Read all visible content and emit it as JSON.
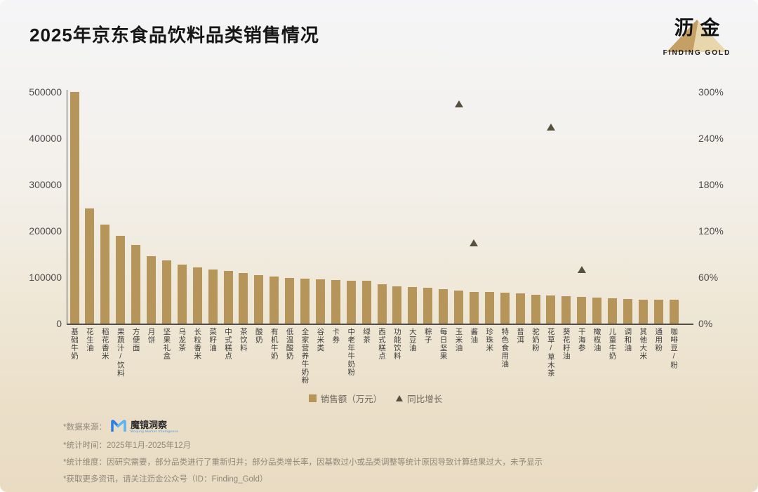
{
  "header": {
    "title": "2025年京东食品饮料品类销售情况",
    "brand": {
      "name": "沥金",
      "subtitle": "FINDING GOLD"
    }
  },
  "chart_data": {
    "type": "bar",
    "title": "2025年京东食品饮料品类销售情况",
    "categories": [
      "基础牛奶",
      "花生油",
      "稻花香米",
      "果蔬汁/饮料",
      "方便面",
      "月饼",
      "坚果礼盒",
      "乌龙茶",
      "长粒香米",
      "菜籽油",
      "中式糕点",
      "茶饮料",
      "酸奶",
      "有机牛奶",
      "低温酸奶",
      "全家营养牛奶粉",
      "谷米类",
      "卡券",
      "中老年牛奶粉",
      "绿茶",
      "西式糕点",
      "功能饮料",
      "大豆油",
      "粽子",
      "每日坚果",
      "玉米油",
      "酱油",
      "珍珠米",
      "特色食用油",
      "普洱",
      "驼奶粉",
      "花草/草木茶",
      "葵花籽油",
      "干海参",
      "橄榄油",
      "儿童牛奶",
      "调和油",
      "其他大米",
      "通用粉",
      "咖啡豆/粉"
    ],
    "series": [
      {
        "name": "销售额（万元）",
        "type": "bar",
        "color": "#b6955a",
        "values": [
          500000,
          248000,
          214000,
          190000,
          170000,
          145000,
          136000,
          128000,
          121000,
          116000,
          113000,
          109000,
          105000,
          101000,
          98000,
          97000,
          95000,
          94000,
          93000,
          92000,
          85000,
          81000,
          79000,
          77000,
          75000,
          72000,
          69000,
          68000,
          66000,
          65000,
          62000,
          60000,
          59000,
          57000,
          56000,
          55000,
          53000,
          52000,
          52000,
          51000
        ]
      },
      {
        "name": "同比增长",
        "type": "scatter-triangle",
        "color": "#56503f",
        "points": [
          {
            "category": "玉米油",
            "growth_pct": 285
          },
          {
            "category": "酱油",
            "growth_pct": 105
          },
          {
            "category": "花草/草木茶",
            "growth_pct": 255
          },
          {
            "category": "干海参",
            "growth_pct": 70
          }
        ]
      }
    ],
    "left_axis": {
      "label": "",
      "ticks": [
        "0",
        "100000",
        "200000",
        "300000",
        "400000",
        "500000"
      ],
      "min": 0,
      "max": 500000
    },
    "right_axis": {
      "label": "",
      "ticks": [
        "0%",
        "60%",
        "120%",
        "180%",
        "240%",
        "300%"
      ],
      "min": 0,
      "max": 300
    },
    "legend": {
      "position": "bottom",
      "items": [
        "销售额（万元）",
        "同比增长"
      ]
    },
    "grid": false
  },
  "footer": {
    "source_label": "*数据来源：",
    "source_brand": "魔镜洞察",
    "source_brand_subtitle": "Moojing Market Intelligence",
    "lines": [
      "*统计时间：2025年1月-2025年12月",
      "*统计维度：因研究需要，部分品类进行了重新归并；部分品类增长率，因基数过小或品类调整等统计原因导致计算结果过大，未予显示",
      "*获取更多资讯，请关注沥金公众号（ID：Finding_Gold）"
    ]
  }
}
